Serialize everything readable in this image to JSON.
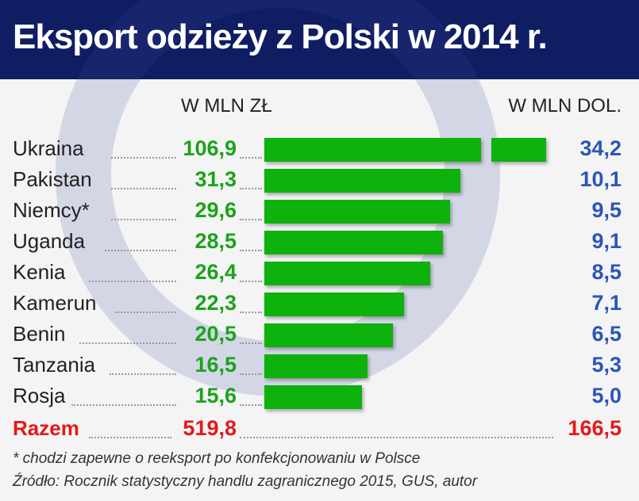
{
  "chart_data": {
    "type": "bar",
    "title": "Eksport odzieży z Polski w 2014 r.",
    "col_pln": "W MLN ZŁ",
    "col_usd": "W MLN DOL.",
    "categories": [
      "Ukraina",
      "Pakistan",
      "Niemcy*",
      "Uganda",
      "Kenia",
      "Kamerun",
      "Benin",
      "Tanzania",
      "Rosja"
    ],
    "values_pln": [
      "106,9",
      "31,3",
      "29,6",
      "28,5",
      "26,4",
      "22,3",
      "20,5",
      "16,5",
      "15,6"
    ],
    "values_usd": [
      "34,2",
      "10,1",
      "9,5",
      "9,1",
      "8,5",
      "7,1",
      "6,5",
      "5,3",
      "5,0"
    ],
    "values": [
      106.9,
      31.3,
      29.6,
      28.5,
      26.4,
      22.3,
      20.5,
      16.5,
      15.6
    ],
    "broken_axis_first_bar": true,
    "total": {
      "label": "Razem",
      "pln": "519,8",
      "usd": "166,5"
    },
    "bar_color": "#0db20d"
  },
  "footnote": "* chodzi zapewne o reeksport po konfekcjonowaniu w Polsce",
  "source": "Źródło: Rocznik statystyczny handlu zagranicznego 2015, GUS, autor"
}
